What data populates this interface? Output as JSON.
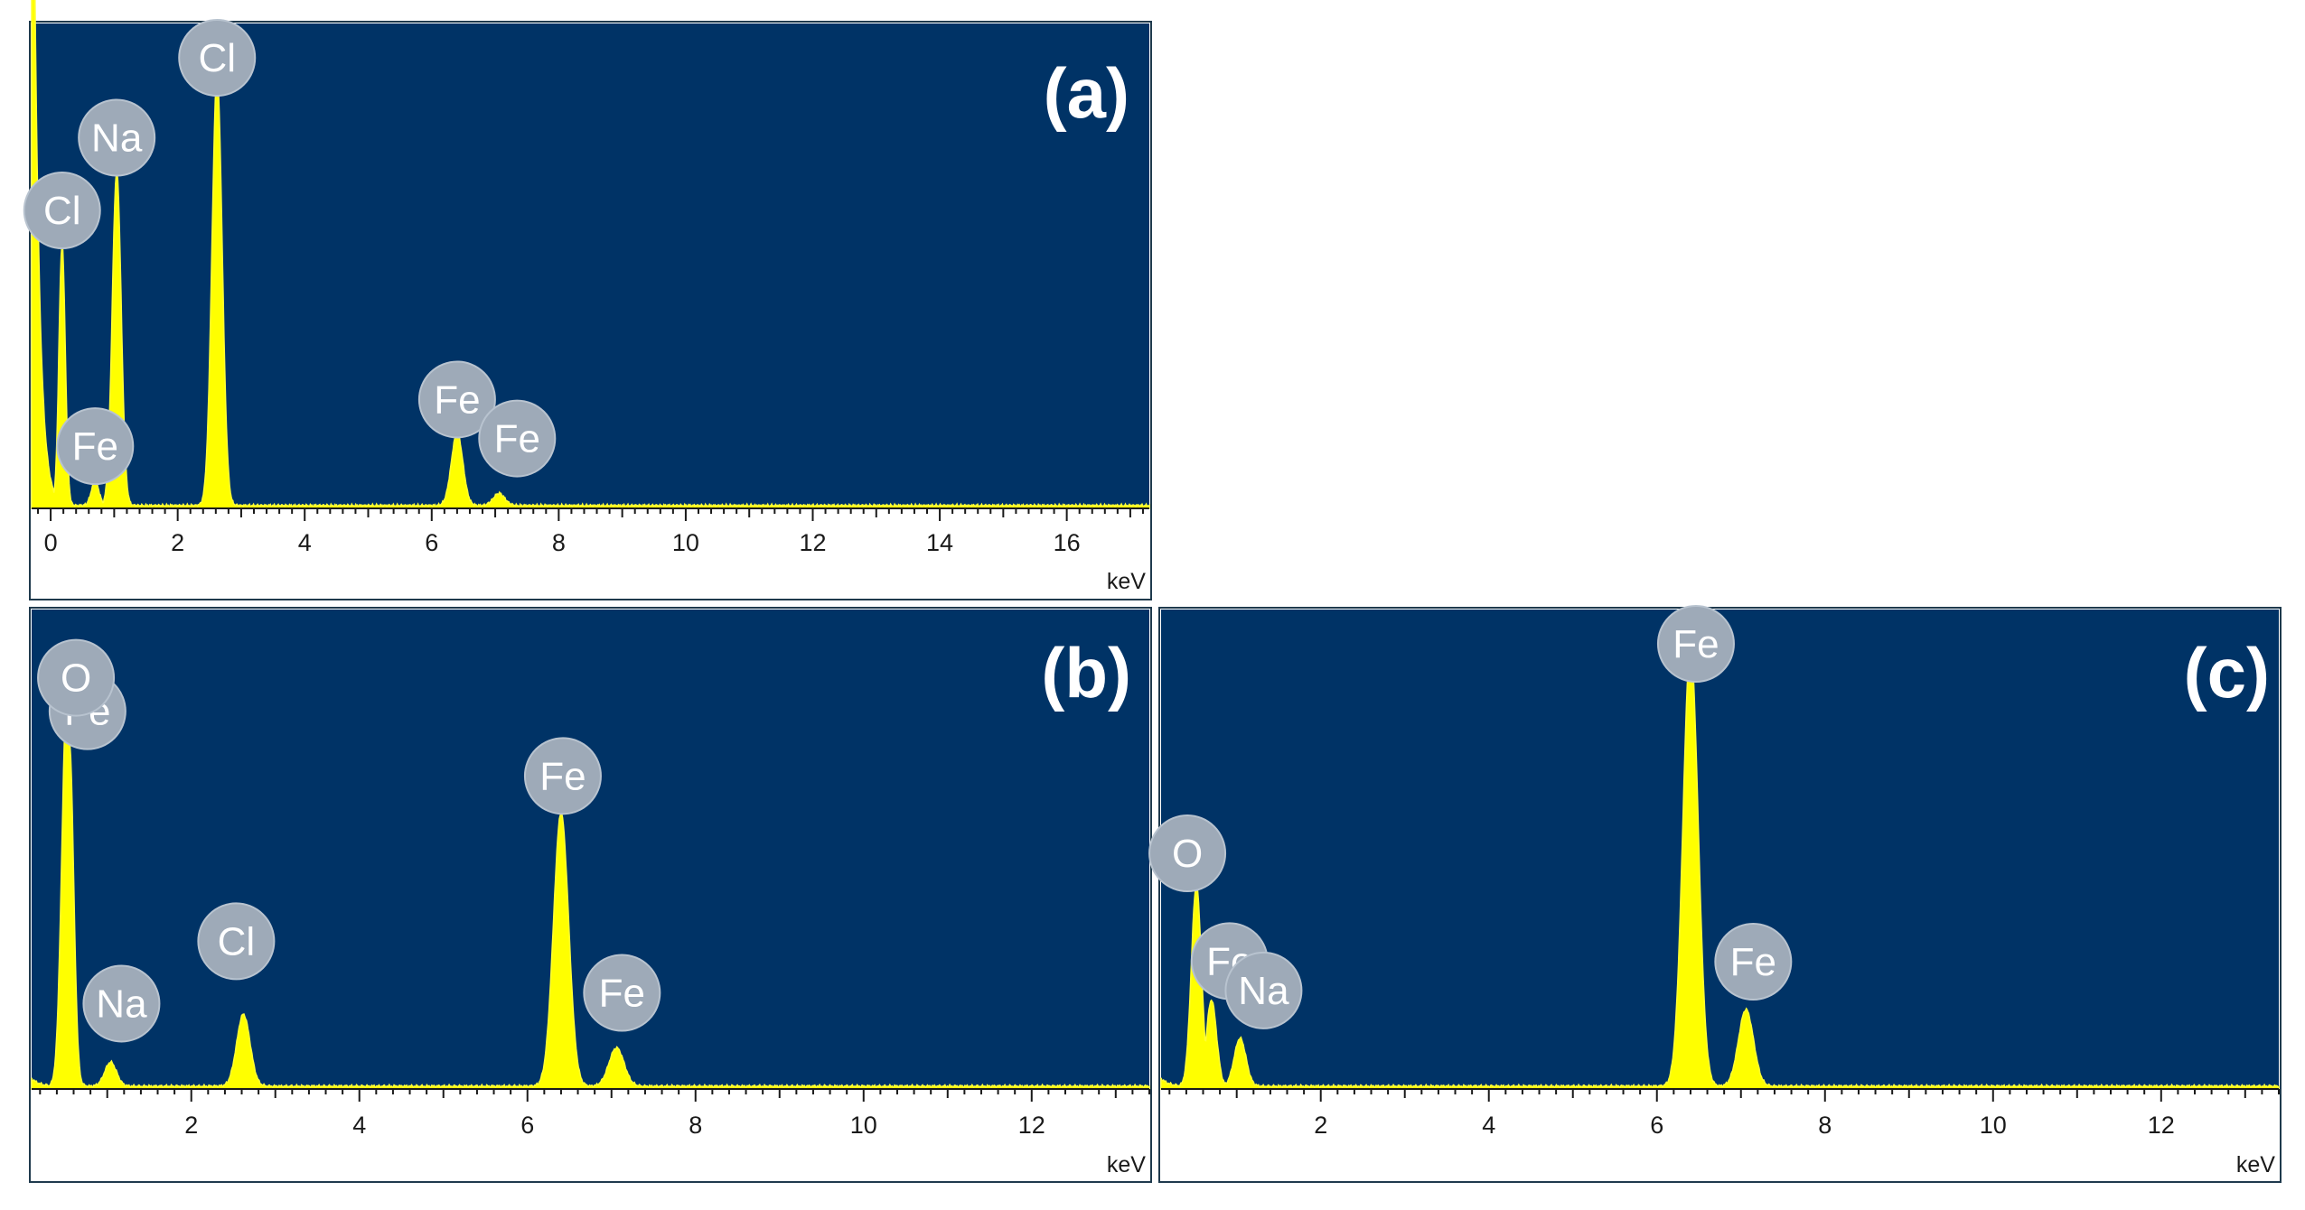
{
  "chart_data": [
    {
      "type": "area",
      "panel_label": "(a)",
      "xlabel": "keV",
      "xlim": [
        -0.3,
        17.3
      ],
      "x_ticks": [
        0,
        2,
        4,
        6,
        8,
        10,
        12,
        14,
        16
      ],
      "ylim": [
        0,
        100
      ],
      "peaks": [
        {
          "element": "Cl",
          "energy": 0.18,
          "height": 54,
          "width": 0.05
        },
        {
          "element": "Fe",
          "energy": 0.7,
          "height": 5,
          "width": 0.06
        },
        {
          "element": "Na",
          "energy": 1.04,
          "height": 69,
          "width": 0.07
        },
        {
          "element": "Cl",
          "energy": 2.62,
          "height": 89,
          "width": 0.08
        },
        {
          "element": "Fe",
          "energy": 6.4,
          "height": 15,
          "width": 0.09
        },
        {
          "element": "Fe",
          "energy": 7.06,
          "height": 2.5,
          "width": 0.09
        }
      ]
    },
    {
      "type": "area",
      "panel_label": "(b)",
      "xlabel": "keV",
      "xlim": [
        0.1,
        13.4
      ],
      "x_ticks": [
        2,
        4,
        6,
        8,
        10,
        12
      ],
      "ylim": [
        0,
        100
      ],
      "peaks": [
        {
          "element": "Fe",
          "energy": 0.55,
          "height": 72,
          "width": 0.05
        },
        {
          "element": "O",
          "energy": 0.52,
          "height": 82,
          "width": 0.06
        },
        {
          "element": "Na",
          "energy": 1.04,
          "height": 5,
          "width": 0.07
        },
        {
          "element": "Cl",
          "energy": 2.62,
          "height": 15,
          "width": 0.08
        },
        {
          "element": "Fe",
          "energy": 6.4,
          "height": 57,
          "width": 0.09
        },
        {
          "element": "Fe",
          "energy": 7.06,
          "height": 8,
          "width": 0.09
        }
      ]
    },
    {
      "type": "area",
      "panel_label": "(c)",
      "xlabel": "keV",
      "xlim": [
        0.1,
        13.4
      ],
      "x_ticks": [
        2,
        4,
        6,
        8,
        10,
        12
      ],
      "ylim": [
        0,
        100
      ],
      "peaks": [
        {
          "element": "O",
          "energy": 0.52,
          "height": 42,
          "width": 0.06
        },
        {
          "element": "Fe",
          "energy": 0.7,
          "height": 18,
          "width": 0.06
        },
        {
          "element": "Na",
          "energy": 1.04,
          "height": 10,
          "width": 0.07
        },
        {
          "element": "Fe",
          "energy": 6.4,
          "height": 92,
          "width": 0.09
        },
        {
          "element": "Fe",
          "energy": 7.06,
          "height": 16,
          "width": 0.09
        }
      ]
    }
  ]
}
